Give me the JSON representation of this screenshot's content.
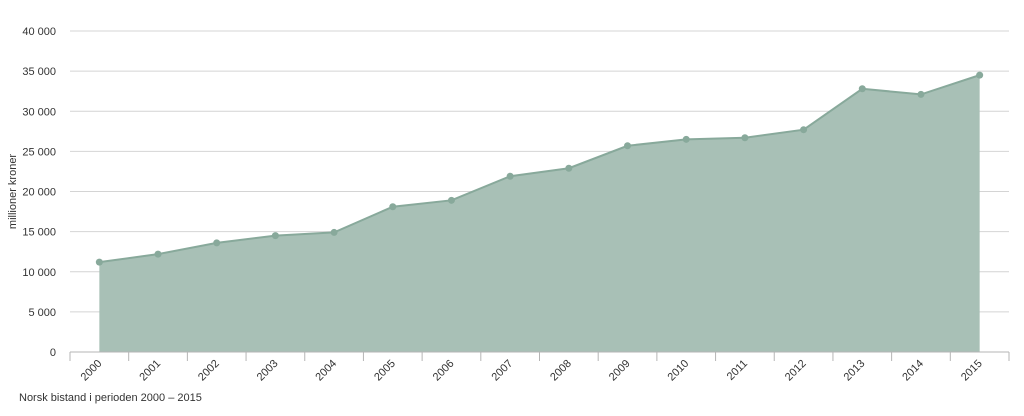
{
  "colors": {
    "fill": "#a8c0b6",
    "line": "#88a99b",
    "marker": "#88a99b",
    "grid": "#d4d4d4",
    "axis": "#b5b5b5"
  },
  "caption": "Norsk bistand i perioden 2000 – 2015",
  "chart_data": {
    "type": "area",
    "x": [
      "2000",
      "2001",
      "2002",
      "2003",
      "2004",
      "2005",
      "2006",
      "2007",
      "2008",
      "2009",
      "2010",
      "2011",
      "2012",
      "2013",
      "2014",
      "2015"
    ],
    "values": [
      11200,
      12200,
      13600,
      14500,
      14900,
      18100,
      18900,
      21900,
      22900,
      25700,
      26500,
      26700,
      27700,
      32800,
      32100,
      34500
    ],
    "ylabel": "millioner kroner",
    "xlabel": "",
    "ylim": [
      0,
      40000
    ],
    "yticks": [
      0,
      5000,
      10000,
      15000,
      20000,
      25000,
      30000,
      35000,
      40000
    ],
    "ytick_labels": [
      "0",
      "5 000",
      "10 000",
      "15 000",
      "20 000",
      "25 000",
      "30 000",
      "35 000",
      "40 000"
    ],
    "grid": true,
    "markers": true
  }
}
